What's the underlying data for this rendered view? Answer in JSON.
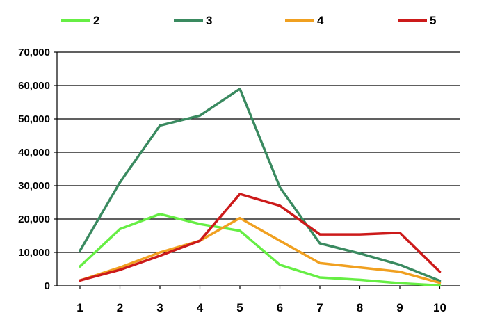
{
  "chart_data": {
    "type": "line",
    "title": "",
    "xlabel": "",
    "ylabel": "",
    "categories": [
      "1",
      "2",
      "3",
      "4",
      "5",
      "6",
      "7",
      "8",
      "9",
      "10"
    ],
    "ylim": [
      0,
      70000
    ],
    "yticks": [
      0,
      10000,
      20000,
      30000,
      40000,
      50000,
      60000,
      70000
    ],
    "ytick_labels": [
      "0",
      "10,000",
      "20,000",
      "30,000",
      "40,000",
      "50,000",
      "60,000",
      "70,000"
    ],
    "grid": "horizontal",
    "legend_position": "top",
    "series": [
      {
        "name": "2",
        "color": "#66ee44",
        "values": [
          5800,
          17000,
          21500,
          18500,
          16500,
          6300,
          2500,
          1800,
          800,
          100
        ]
      },
      {
        "name": "3",
        "color": "#3a8a60",
        "values": [
          10500,
          31000,
          48000,
          51000,
          59000,
          29500,
          12700,
          9700,
          6300,
          1500
        ]
      },
      {
        "name": "4",
        "color": "#f0a020",
        "values": [
          1600,
          5500,
          10000,
          13500,
          20300,
          13500,
          6800,
          5500,
          4200,
          900
        ]
      },
      {
        "name": "5",
        "color": "#cc1a1a",
        "values": [
          1600,
          4800,
          9000,
          13500,
          27500,
          24000,
          15400,
          15400,
          15900,
          4200
        ]
      }
    ]
  }
}
